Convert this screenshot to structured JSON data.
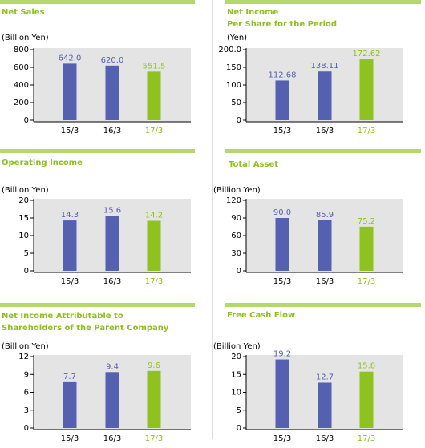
{
  "chart_data": [
    {
      "type": "bar",
      "title": [
        "Net Sales"
      ],
      "ylabel": "(Billion Yen)",
      "categories": [
        "15/3",
        "16/3",
        "17/3"
      ],
      "values": [
        642,
        620,
        551.5
      ],
      "value_labels": [
        "642.0",
        "620.0",
        "551.5"
      ],
      "colors": [
        "#5461b0",
        "#5461b0",
        "#8dc21f"
      ],
      "category_colors": [
        "#000000",
        "#000000",
        "#8dc21f"
      ],
      "ylim": [
        0,
        800
      ],
      "yticks": [
        0,
        200,
        400,
        600,
        800
      ]
    },
    {
      "type": "bar",
      "title": [
        "Net Income",
        "Per Share for the Period"
      ],
      "ylabel": "(Yen)",
      "categories": [
        "15/3",
        "16/3",
        "17/3"
      ],
      "values": [
        112.68,
        138.11,
        172.62
      ],
      "colors": [
        "#5461b0",
        "#5461b0",
        "#8dc21f"
      ],
      "category_colors": [
        "#000000",
        "#000000",
        "#8dc21f"
      ],
      "ylim": [
        0,
        200
      ],
      "yticks": [
        0,
        50,
        100,
        150,
        {
          "value": 200,
          "label": "200.0"
        }
      ]
    },
    {
      "type": "bar",
      "title": [
        "Operating Income"
      ],
      "ylabel": "(Billion Yen)",
      "categories": [
        "15/3",
        "16/3",
        "17/3"
      ],
      "values": [
        14.3,
        15.6,
        14.2
      ],
      "colors": [
        "#5461b0",
        "#5461b0",
        "#8dc21f"
      ],
      "category_colors": [
        "#000000",
        "#000000",
        "#8dc21f"
      ],
      "ylim": [
        0,
        20
      ],
      "yticks": [
        0,
        5,
        10,
        15,
        20
      ]
    },
    {
      "type": "bar",
      "title": [
        "Total Asset"
      ],
      "ylabel": "(Billion Yen)",
      "categories": [
        "15/3",
        "16/3",
        "17/3"
      ],
      "values": [
        90,
        85.9,
        75.2
      ],
      "value_labels": [
        "90.0",
        "85.9",
        "75.2"
      ],
      "colors": [
        "#5461b0",
        "#5461b0",
        "#8dc21f"
      ],
      "category_colors": [
        "#000000",
        "#000000",
        "#8dc21f"
      ],
      "ylim": [
        0,
        120
      ],
      "yticks": [
        0,
        30,
        60,
        90,
        120
      ]
    },
    {
      "type": "bar",
      "title": [
        "Net Income Attributable to",
        "Shareholders of the Parent Company"
      ],
      "ylabel": "(Billion Yen)",
      "categories": [
        "15/3",
        "16/3",
        "17/3"
      ],
      "values": [
        7.7,
        9.4,
        9.6
      ],
      "colors": [
        "#5461b0",
        "#5461b0",
        "#8dc21f"
      ],
      "category_colors": [
        "#000000",
        "#000000",
        "#8dc21f"
      ],
      "ylim": [
        0,
        12
      ],
      "yticks": [
        0,
        3,
        6,
        9,
        12
      ]
    },
    {
      "type": "bar",
      "title": [
        "Free Cash Flow"
      ],
      "ylabel": "(Billion Yen)",
      "categories": [
        "15/3",
        "16/3",
        "17/3"
      ],
      "values": [
        19.2,
        12.7,
        15.8
      ],
      "colors": [
        "#5461b0",
        "#5461b0",
        "#8dc21f"
      ],
      "category_colors": [
        "#000000",
        "#000000",
        "#8dc21f"
      ],
      "ylim": [
        0,
        20
      ],
      "yticks": [
        0,
        5,
        10,
        15,
        20
      ]
    }
  ]
}
